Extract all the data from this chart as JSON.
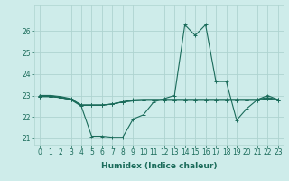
{
  "xlabel": "Humidex (Indice chaleur)",
  "background_color": "#ceecea",
  "grid_color": "#aed4d0",
  "line_color": "#1a6b5a",
  "xlim": [
    -0.5,
    23.5
  ],
  "ylim": [
    20.7,
    27.2
  ],
  "yticks": [
    21,
    22,
    23,
    24,
    25,
    26
  ],
  "xticks": [
    0,
    1,
    2,
    3,
    4,
    5,
    6,
    7,
    8,
    9,
    10,
    11,
    12,
    13,
    14,
    15,
    16,
    17,
    18,
    19,
    20,
    21,
    22,
    23
  ],
  "series_main": [
    23.0,
    23.0,
    22.9,
    22.8,
    22.5,
    21.1,
    21.1,
    21.05,
    21.05,
    21.9,
    22.1,
    22.7,
    22.85,
    23.0,
    26.3,
    25.8,
    26.3,
    23.65,
    23.65,
    21.85,
    22.4,
    22.8,
    23.0,
    22.8
  ],
  "series_flat1": [
    23.0,
    23.0,
    22.95,
    22.85,
    22.55,
    22.55,
    22.55,
    22.6,
    22.7,
    22.8,
    22.82,
    22.82,
    22.82,
    22.82,
    22.82,
    22.82,
    22.82,
    22.82,
    22.82,
    22.82,
    22.82,
    22.82,
    22.9,
    22.82
  ],
  "series_flat2": [
    22.95,
    22.95,
    22.9,
    22.82,
    22.55,
    22.55,
    22.55,
    22.6,
    22.7,
    22.75,
    22.78,
    22.78,
    22.78,
    22.78,
    22.78,
    22.78,
    22.78,
    22.78,
    22.78,
    22.78,
    22.78,
    22.78,
    22.85,
    22.78
  ],
  "series_flat3": [
    22.95,
    22.95,
    22.9,
    22.82,
    22.55,
    22.55,
    22.55,
    22.6,
    22.7,
    22.75,
    22.78,
    22.78,
    22.78,
    22.78,
    22.78,
    22.78,
    22.78,
    22.78,
    22.78,
    22.78,
    22.78,
    22.78,
    22.85,
    22.78
  ],
  "marker": "+",
  "markersize": 3,
  "linewidth": 0.8,
  "tick_fontsize": 5.5,
  "label_fontsize": 6.5
}
